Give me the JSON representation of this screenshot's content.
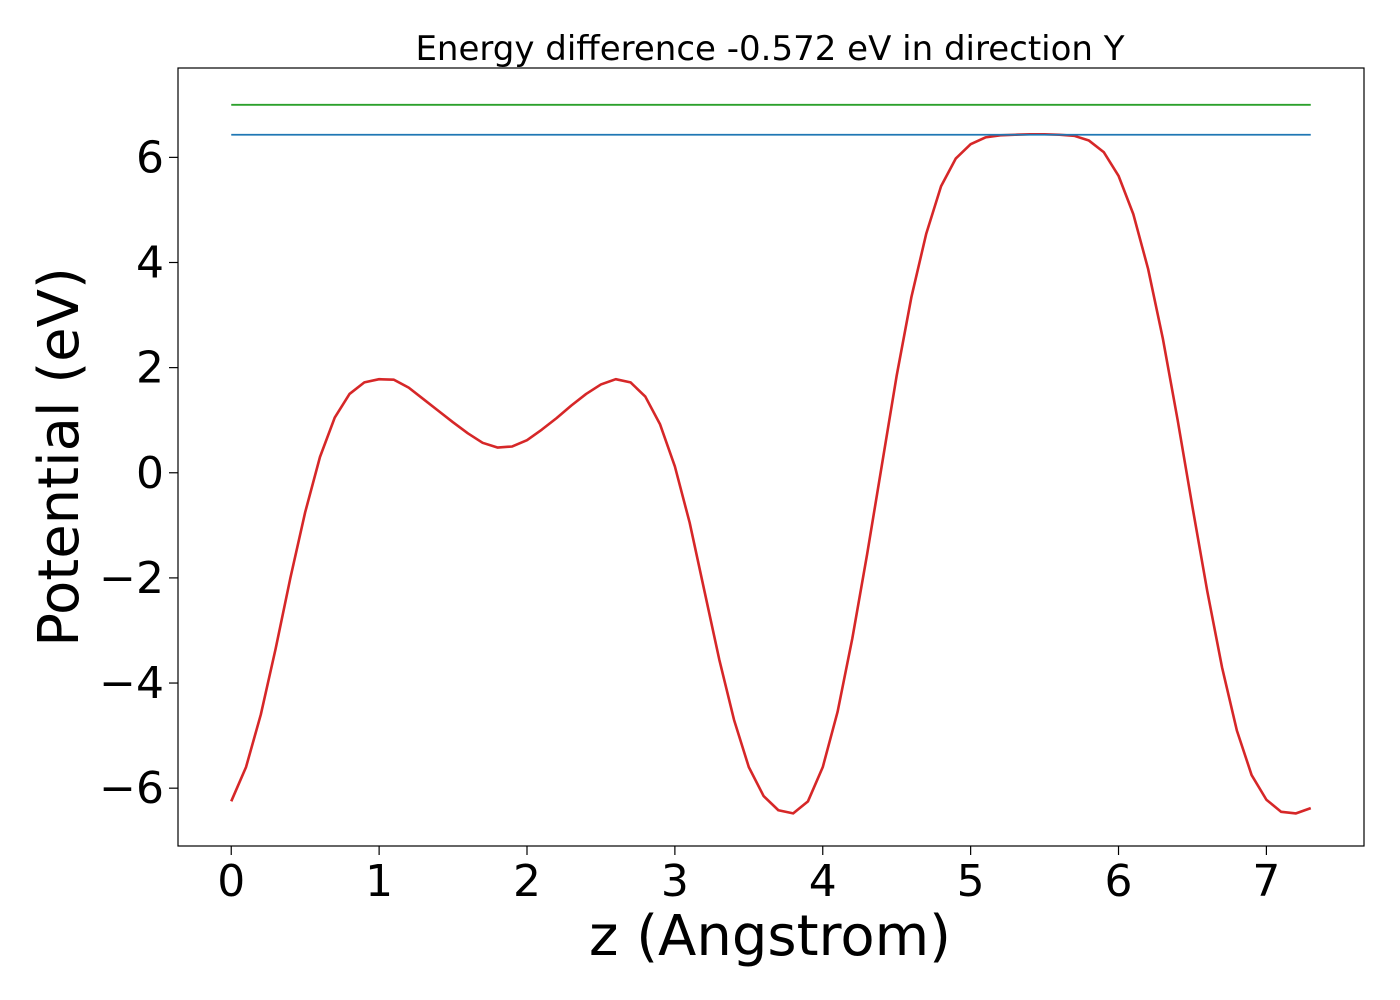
{
  "chart_data": {
    "type": "line",
    "title": "Energy difference -0.572 eV in direction Y",
    "xlabel": "z (Angstrom)",
    "ylabel": "Potential (eV)",
    "xlim": [
      -0.36,
      7.66
    ],
    "ylim": [
      -7.1,
      7.7
    ],
    "grid": false,
    "x_ticks": [
      0,
      1,
      2,
      3,
      4,
      5,
      6,
      7
    ],
    "x_tick_labels": [
      "0",
      "1",
      "2",
      "3",
      "4",
      "5",
      "6",
      "7"
    ],
    "y_ticks": [
      -6,
      -4,
      -2,
      0,
      2,
      4,
      6
    ],
    "y_tick_labels": [
      "−6",
      "−4",
      "−2",
      "0",
      "2",
      "4",
      "6"
    ],
    "series": [
      {
        "color": "#d62728",
        "points": [
          [
            0.0,
            -6.25
          ],
          [
            0.1,
            -5.6
          ],
          [
            0.2,
            -4.6
          ],
          [
            0.3,
            -3.35
          ],
          [
            0.4,
            -2.0
          ],
          [
            0.5,
            -0.75
          ],
          [
            0.6,
            0.3
          ],
          [
            0.7,
            1.05
          ],
          [
            0.8,
            1.5
          ],
          [
            0.9,
            1.72
          ],
          [
            1.0,
            1.78
          ],
          [
            1.1,
            1.77
          ],
          [
            1.2,
            1.62
          ],
          [
            1.3,
            1.4
          ],
          [
            1.4,
            1.18
          ],
          [
            1.5,
            0.96
          ],
          [
            1.6,
            0.75
          ],
          [
            1.7,
            0.57
          ],
          [
            1.8,
            0.48
          ],
          [
            1.9,
            0.5
          ],
          [
            2.0,
            0.62
          ],
          [
            2.1,
            0.82
          ],
          [
            2.2,
            1.04
          ],
          [
            2.3,
            1.28
          ],
          [
            2.4,
            1.5
          ],
          [
            2.5,
            1.68
          ],
          [
            2.6,
            1.78
          ],
          [
            2.7,
            1.72
          ],
          [
            2.8,
            1.45
          ],
          [
            2.9,
            0.92
          ],
          [
            3.0,
            0.12
          ],
          [
            3.1,
            -0.95
          ],
          [
            3.2,
            -2.25
          ],
          [
            3.3,
            -3.55
          ],
          [
            3.4,
            -4.7
          ],
          [
            3.5,
            -5.6
          ],
          [
            3.6,
            -6.15
          ],
          [
            3.7,
            -6.42
          ],
          [
            3.8,
            -6.48
          ],
          [
            3.9,
            -6.25
          ],
          [
            4.0,
            -5.6
          ],
          [
            4.1,
            -4.55
          ],
          [
            4.2,
            -3.15
          ],
          [
            4.3,
            -1.55
          ],
          [
            4.4,
            0.15
          ],
          [
            4.5,
            1.85
          ],
          [
            4.6,
            3.35
          ],
          [
            4.7,
            4.55
          ],
          [
            4.8,
            5.45
          ],
          [
            4.9,
            5.98
          ],
          [
            5.0,
            6.25
          ],
          [
            5.1,
            6.38
          ],
          [
            5.2,
            6.42
          ],
          [
            5.3,
            6.43
          ],
          [
            5.4,
            6.44
          ],
          [
            5.5,
            6.44
          ],
          [
            5.6,
            6.43
          ],
          [
            5.7,
            6.41
          ],
          [
            5.8,
            6.32
          ],
          [
            5.9,
            6.1
          ],
          [
            6.0,
            5.65
          ],
          [
            6.1,
            4.92
          ],
          [
            6.2,
            3.88
          ],
          [
            6.3,
            2.55
          ],
          [
            6.4,
            1.0
          ],
          [
            6.5,
            -0.65
          ],
          [
            6.6,
            -2.25
          ],
          [
            6.7,
            -3.7
          ],
          [
            6.8,
            -4.9
          ],
          [
            6.9,
            -5.75
          ],
          [
            7.0,
            -6.22
          ],
          [
            7.1,
            -6.45
          ],
          [
            7.2,
            -6.48
          ],
          [
            7.3,
            -6.38
          ]
        ]
      },
      {
        "color": "#1f77b4",
        "points": [
          [
            0.0,
            6.43
          ],
          [
            7.3,
            6.43
          ]
        ]
      },
      {
        "color": "#2ca02c",
        "points": [
          [
            0.0,
            7.0
          ],
          [
            7.3,
            7.0
          ]
        ]
      }
    ]
  }
}
